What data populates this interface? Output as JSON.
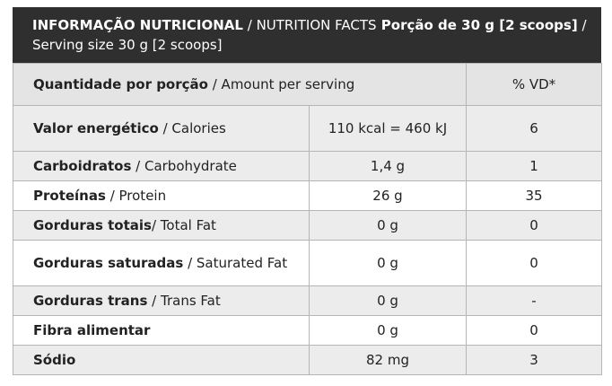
{
  "header": {
    "title_pt": "INFORMAÇÃO NUTRICIONAL",
    "sep1": " / ",
    "title_en": "NUTRITION FACTS",
    "serving_pt": " Porção de 30 g [2 scoops]",
    "sep2": " / ",
    "serving_en": "Serving size 30 g [2 scoops]"
  },
  "columns": {
    "amount_pt": "Quantidade por porção",
    "amount_en": " / Amount per serving",
    "dv": "% VD*"
  },
  "rows": [
    {
      "name_pt": "Valor energético",
      "name_en": " / Calories",
      "value": "110 kcal = 460 kJ",
      "dv": "6"
    },
    {
      "name_pt": "Carboidratos",
      "name_en": " / Carbohydrate",
      "value": "1,4 g",
      "dv": "1"
    },
    {
      "name_pt": "Proteínas",
      "name_en": " / Protein",
      "value": "26 g",
      "dv": "35"
    },
    {
      "name_pt": "Gorduras totais",
      "name_en": "/ Total Fat",
      "value": "0 g",
      "dv": "0"
    },
    {
      "name_pt": "Gorduras saturadas",
      "name_en": " / Saturated Fat",
      "value": "0 g",
      "dv": "0"
    },
    {
      "name_pt": "Gorduras trans",
      "name_en": " / Trans Fat",
      "value": "0 g",
      "dv": "-"
    },
    {
      "name_pt": "Fibra alimentar",
      "name_en": "",
      "value": "0 g",
      "dv": "0"
    },
    {
      "name_pt": "Sódio",
      "name_en": "",
      "value": "82 mg",
      "dv": "3"
    }
  ]
}
